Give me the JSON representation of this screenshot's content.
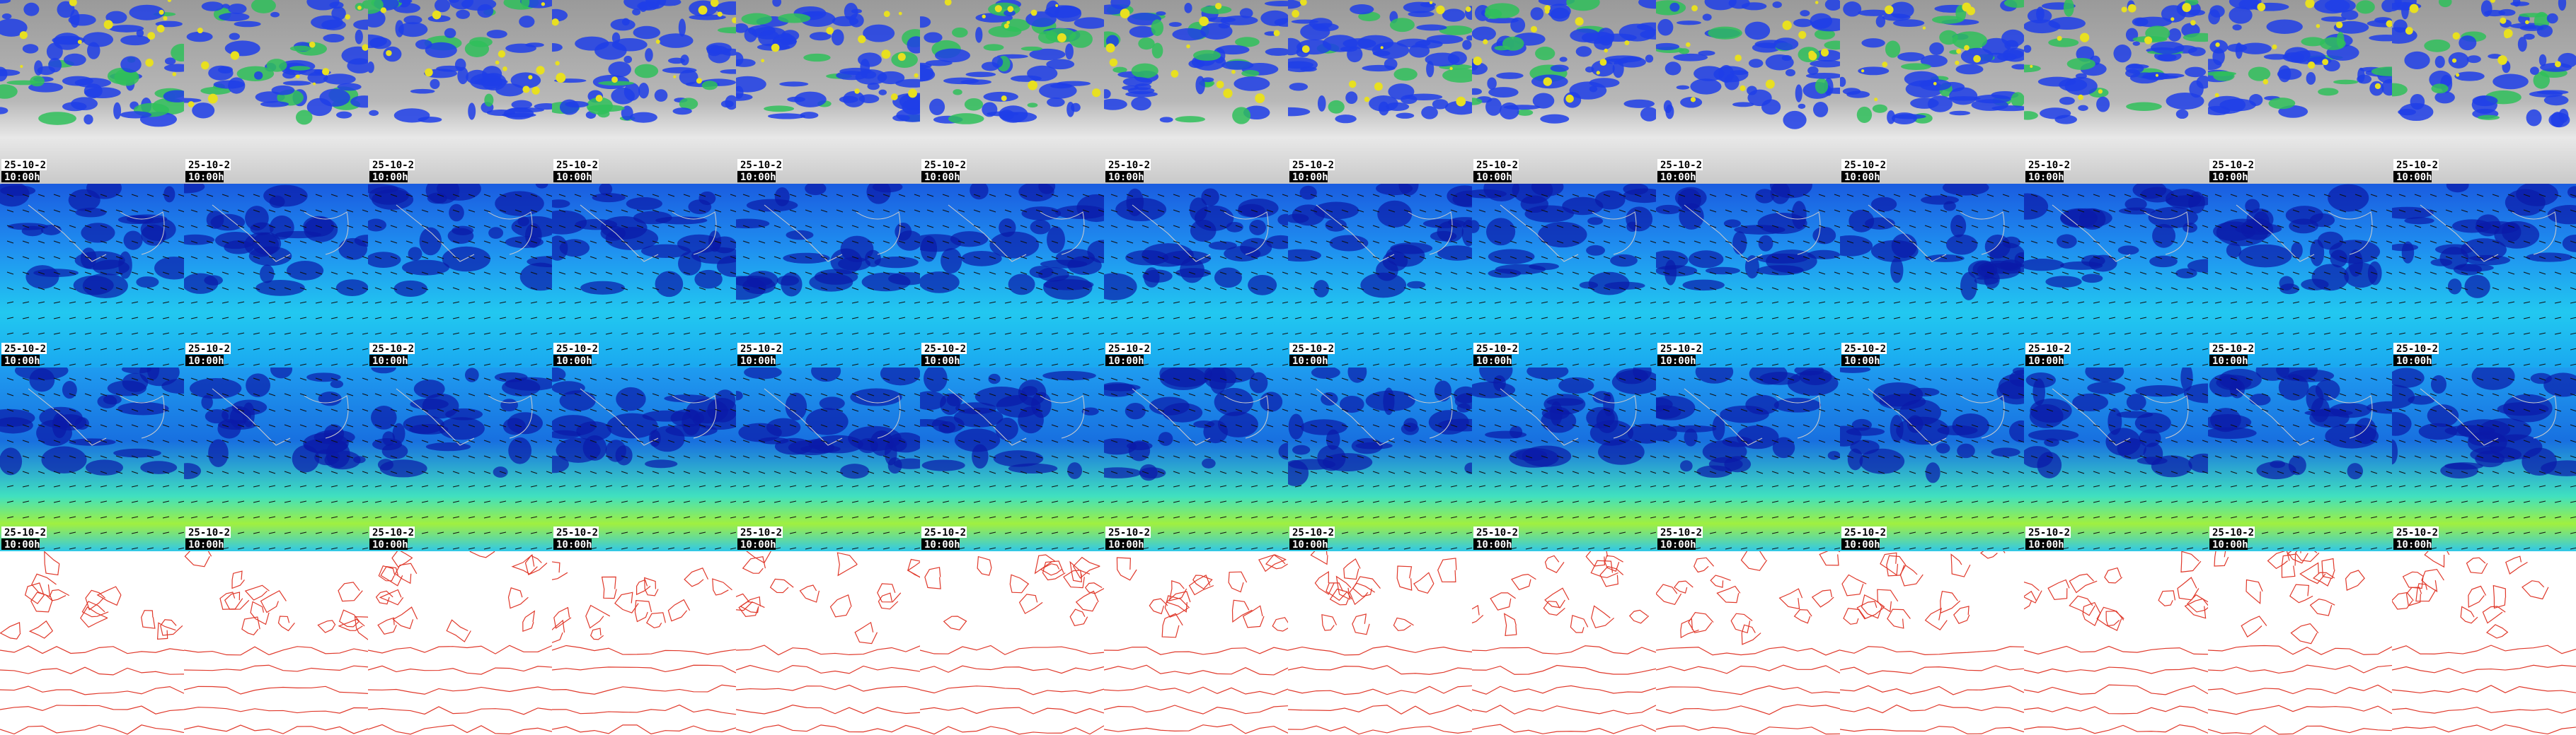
{
  "rows": [
    {
      "panels": [
        {
          "date": "25-10-2",
          "time": "10:00h"
        },
        {
          "date": "25-10-2",
          "time": "10:00h"
        },
        {
          "date": "25-10-2",
          "time": "10:00h"
        },
        {
          "date": "25-10-2",
          "time": "10:00h"
        },
        {
          "date": "25-10-2",
          "time": "10:00h"
        },
        {
          "date": "25-10-2",
          "time": "10:00h"
        },
        {
          "date": "25-10-2",
          "time": "10:00h"
        },
        {
          "date": "25-10-2",
          "time": "10:00h"
        },
        {
          "date": "25-10-2",
          "time": "10:00h"
        },
        {
          "date": "25-10-2",
          "time": "10:00h"
        },
        {
          "date": "25-10-2",
          "time": "10:00h"
        },
        {
          "date": "25-10-2",
          "time": "10:00h"
        },
        {
          "date": "25-10-2",
          "time": "10:00h"
        },
        {
          "date": "25-10-2",
          "time": "10:00h"
        }
      ]
    },
    {
      "panels": [
        {
          "date": "25-10-2",
          "time": "10:00h"
        },
        {
          "date": "25-10-2",
          "time": "10:00h"
        },
        {
          "date": "25-10-2",
          "time": "10:00h"
        },
        {
          "date": "25-10-2",
          "time": "10:00h"
        },
        {
          "date": "25-10-2",
          "time": "10:00h"
        },
        {
          "date": "25-10-2",
          "time": "10:00h"
        },
        {
          "date": "25-10-2",
          "time": "10:00h"
        },
        {
          "date": "25-10-2",
          "time": "10:00h"
        },
        {
          "date": "25-10-2",
          "time": "10:00h"
        },
        {
          "date": "25-10-2",
          "time": "10:00h"
        },
        {
          "date": "25-10-2",
          "time": "10:00h"
        },
        {
          "date": "25-10-2",
          "time": "10:00h"
        },
        {
          "date": "25-10-2",
          "time": "10:00h"
        },
        {
          "date": "25-10-2",
          "time": "10:00h"
        }
      ]
    },
    {
      "panels": [
        {
          "date": "25-10-2",
          "time": "10:00h"
        },
        {
          "date": "25-10-2",
          "time": "10:00h"
        },
        {
          "date": "25-10-2",
          "time": "10:00h"
        },
        {
          "date": "25-10-2",
          "time": "10:00h"
        },
        {
          "date": "25-10-2",
          "time": "10:00h"
        },
        {
          "date": "25-10-2",
          "time": "10:00h"
        },
        {
          "date": "25-10-2",
          "time": "10:00h"
        },
        {
          "date": "25-10-2",
          "time": "10:00h"
        },
        {
          "date": "25-10-2",
          "time": "10:00h"
        },
        {
          "date": "25-10-2",
          "time": "10:00h"
        },
        {
          "date": "25-10-2",
          "time": "10:00h"
        },
        {
          "date": "25-10-2",
          "time": "10:00h"
        },
        {
          "date": "25-10-2",
          "time": "10:00h"
        },
        {
          "date": "25-10-2",
          "time": "10:00h"
        }
      ]
    },
    {
      "panels": [
        {},
        {},
        {},
        {},
        {},
        {},
        {},
        {},
        {},
        {},
        {},
        {},
        {},
        {}
      ]
    }
  ]
}
